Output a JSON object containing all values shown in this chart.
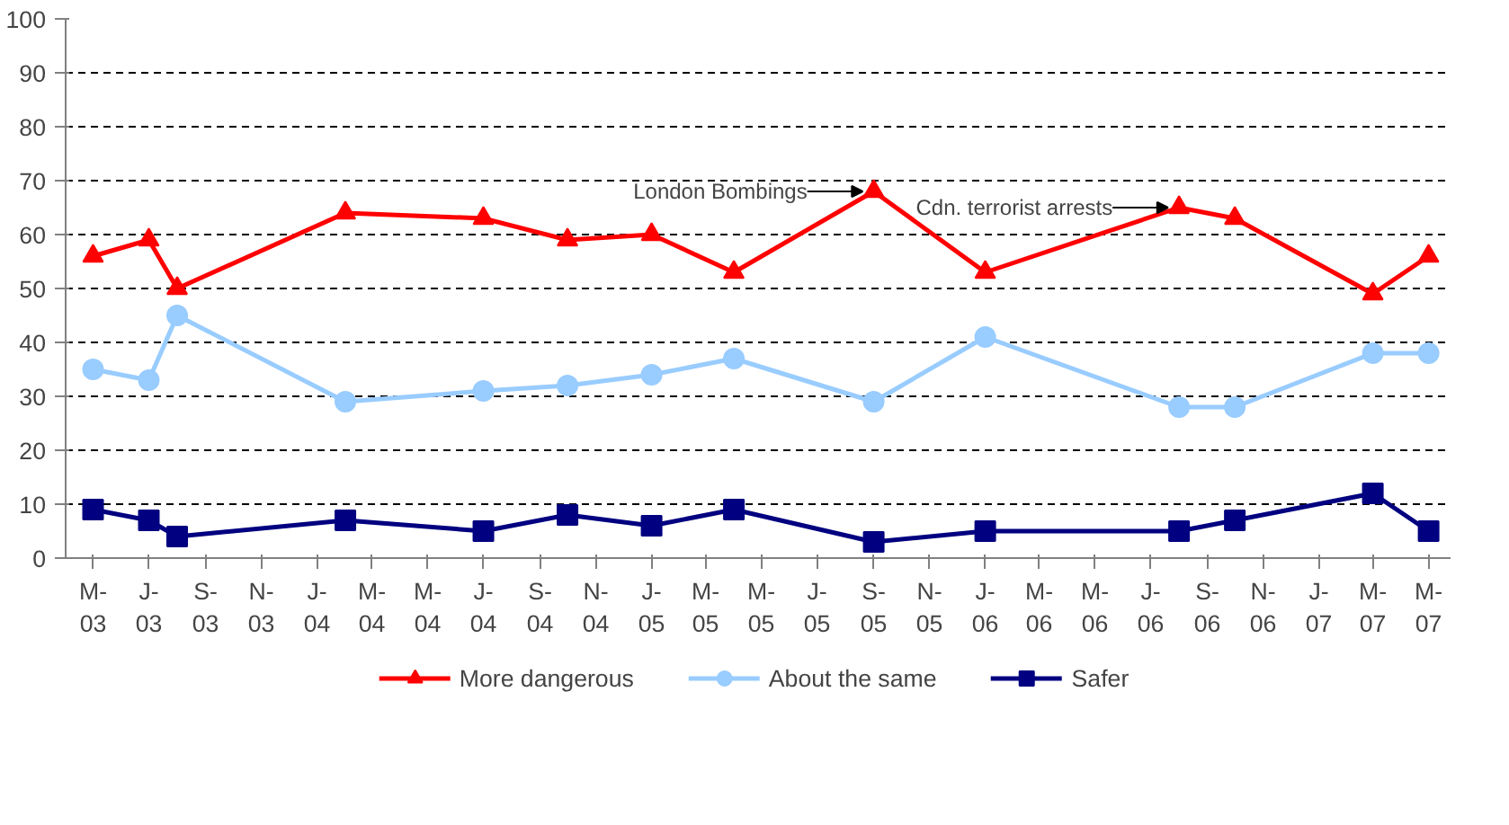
{
  "chart_data": {
    "type": "line",
    "x": [
      "2003-05",
      "2003-07",
      "2003-08",
      "2004-02",
      "2004-07",
      "2004-10",
      "2005-01",
      "2005-04",
      "2005-09",
      "2006-01",
      "2006-08",
      "2006-10",
      "2007-03",
      "2007-05"
    ],
    "xlim": [
      "2003-04",
      "2007-05-25"
    ],
    "xticks": [
      {
        "value": "2003-05",
        "label": "M-\n03"
      },
      {
        "value": "2003-07",
        "label": "J-\n03"
      },
      {
        "value": "2003-09",
        "label": "S-\n03"
      },
      {
        "value": "2003-11",
        "label": "N-\n03"
      },
      {
        "value": "2004-01",
        "label": "J-\n04"
      },
      {
        "value": "2004-03",
        "label": "M-\n04"
      },
      {
        "value": "2004-05",
        "label": "M-\n04"
      },
      {
        "value": "2004-07",
        "label": "J-\n04"
      },
      {
        "value": "2004-09",
        "label": "S-\n04"
      },
      {
        "value": "2004-11",
        "label": "N-\n04"
      },
      {
        "value": "2005-01",
        "label": "J-\n05"
      },
      {
        "value": "2005-03",
        "label": "M-\n05"
      },
      {
        "value": "2005-05",
        "label": "M-\n05"
      },
      {
        "value": "2005-07",
        "label": "J-\n05"
      },
      {
        "value": "2005-09",
        "label": "S-\n05"
      },
      {
        "value": "2005-11",
        "label": "N-\n05"
      },
      {
        "value": "2006-01",
        "label": "J-\n06"
      },
      {
        "value": "2006-03",
        "label": "M-\n06"
      },
      {
        "value": "2006-05",
        "label": "M-\n06"
      },
      {
        "value": "2006-07",
        "label": "J-\n06"
      },
      {
        "value": "2006-09",
        "label": "S-\n06"
      },
      {
        "value": "2006-11",
        "label": "N-\n06"
      },
      {
        "value": "2007-01",
        "label": "J-\n07"
      },
      {
        "value": "2007-03",
        "label": "M-\n07"
      },
      {
        "value": "2007-05",
        "label": "M-\n07"
      }
    ],
    "ylim": [
      0,
      100
    ],
    "yticks": [
      0,
      10,
      20,
      30,
      40,
      50,
      60,
      70,
      80,
      90,
      100
    ],
    "grid": "y",
    "legend": "bottom",
    "line_style": "solid",
    "series": [
      {
        "name": "More dangerous",
        "color": "#ff0000",
        "marker": "triangle",
        "values": [
          56,
          59,
          50,
          64,
          63,
          59,
          60,
          53,
          68,
          53,
          65,
          63,
          49,
          56
        ]
      },
      {
        "name": "About the same",
        "color": "#99ccff",
        "marker": "circle",
        "values": [
          35,
          33,
          45,
          29,
          31,
          32,
          34,
          37,
          29,
          41,
          28,
          28,
          38,
          38
        ]
      },
      {
        "name": "Safer",
        "color": "#000080",
        "marker": "square",
        "values": [
          9,
          7,
          4,
          7,
          5,
          8,
          6,
          9,
          3,
          5,
          5,
          7,
          12,
          5
        ]
      }
    ],
    "annotations": [
      {
        "text": "London Bombings",
        "x": "2005-09",
        "y": 68
      },
      {
        "text": "Cdn. terrorist arrests",
        "x": "2006-08",
        "y": 65
      }
    ]
  }
}
